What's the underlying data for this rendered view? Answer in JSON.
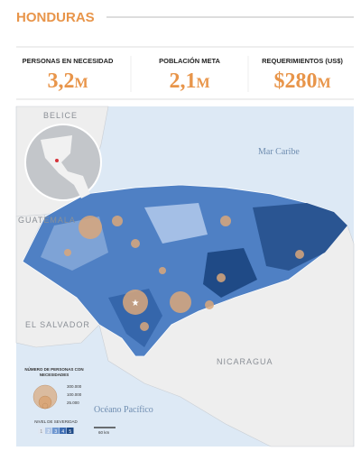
{
  "header": {
    "title": "HONDURAS"
  },
  "stats": [
    {
      "label": "PERSONAS EN NECESIDAD",
      "value": "3,2",
      "unit": "M"
    },
    {
      "label": "POBLACIÓN META",
      "value": "2,1",
      "unit": "M"
    },
    {
      "label": "REQUERIMIENTOS (US$)",
      "value": "$280",
      "unit": "M"
    }
  ],
  "map": {
    "labels": {
      "belize": "BELICE",
      "caribbean": "Mar Caribe",
      "guatemala": "GUATEMALA",
      "el_salvador": "EL SALVADOR",
      "nicaragua": "NICARAGUA",
      "pacific": "Océano Pacífico"
    },
    "legend": {
      "title": [
        "NÚMERO DE PERSONAS CON",
        "NECESIDADES"
      ],
      "sizes": [
        "300.000",
        "100.000",
        "25.000"
      ],
      "severity_title": "NIVEL DE SEVERIDAD",
      "severity_levels": [
        "1",
        "2",
        "3",
        "4",
        "5"
      ]
    },
    "scale": "60 km"
  }
}
